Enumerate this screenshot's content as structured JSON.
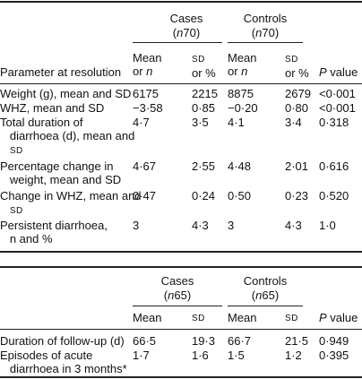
{
  "table1": {
    "group_headers": [
      {
        "name": "Cases",
        "n_label": "n",
        "n_value": "70"
      },
      {
        "name": "Controls",
        "n_label": "n",
        "n_value": "70"
      }
    ],
    "stub_header": "Parameter at resolution",
    "col_headers": {
      "mean": {
        "line1": "Mean",
        "line2_pre": "or ",
        "line2_it": "n"
      },
      "sd": {
        "line1": "SD",
        "line2": "or %"
      },
      "p": {
        "it": "P",
        "rest": " value"
      }
    },
    "rows": [
      {
        "label": [
          "Weight (g), mean and SD"
        ],
        "values": [
          "6175",
          "2215",
          "8875",
          "2679",
          "<0·001"
        ]
      },
      {
        "label": [
          "WHZ, mean and SD"
        ],
        "values": [
          "−3·58",
          "0·85",
          "−0·20",
          "0·80",
          "<0·001"
        ]
      },
      {
        "label": [
          "Total duration of",
          "diarrhoea (d), mean and",
          "SD"
        ],
        "values": [
          "4·7",
          "3·5",
          "4·1",
          "3·4",
          "0·318"
        ]
      },
      {
        "label": [
          "Percentage change in",
          "weight, mean and SD"
        ],
        "values": [
          "4·67",
          "2·55",
          "4·48",
          "2·01",
          "0·616"
        ]
      },
      {
        "label": [
          "Change in WHZ, mean and",
          "SD"
        ],
        "values": [
          "0·47",
          "0·24",
          "0·50",
          "0·23",
          "0·520"
        ]
      },
      {
        "label": [
          "Persistent diarrhoea,",
          "n and %"
        ],
        "values": [
          "3",
          "4·3",
          "3",
          "4·3",
          "1·0"
        ]
      }
    ]
  },
  "table2": {
    "group_headers": [
      {
        "name": "Cases",
        "n_label": "n",
        "n_value": "65"
      },
      {
        "name": "Controls",
        "n_label": "n",
        "n_value": "65"
      }
    ],
    "col_headers": [
      "Mean",
      "SD",
      "Mean",
      "SD"
    ],
    "p_header": {
      "it": "P",
      "rest": " value"
    },
    "rows": [
      {
        "label": [
          "Duration of follow-up (d)"
        ],
        "values": [
          "66·5",
          "19·3",
          "66·7",
          "21·5",
          "0·949"
        ]
      },
      {
        "label": [
          "Episodes of acute",
          "diarrhoea in 3 months*"
        ],
        "values": [
          "1·7",
          "1·6",
          "1·5",
          "1·2",
          "0·395"
        ]
      }
    ]
  }
}
